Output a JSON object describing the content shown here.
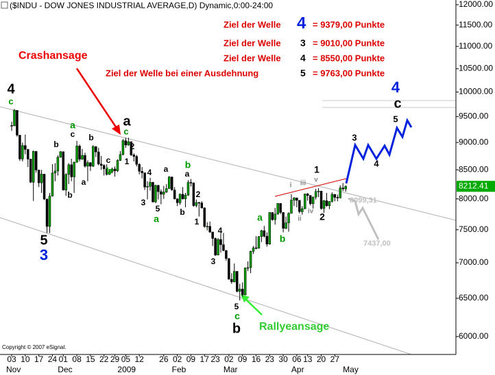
{
  "chart_data": {
    "type": "candlestick",
    "title": "($INDU - DOW JONES INDUSTRIAL AVERAGE,D) Dynamic,0:00-24:00",
    "log_scale": true,
    "up_color": "#009900",
    "down_color": "#000000",
    "ylim": [
      5780,
      12120
    ],
    "xlim": [
      -4.3,
      163.6
    ],
    "yticks": [
      {
        "value": 6000,
        "label": "6000.00"
      },
      {
        "value": 6500,
        "label": "6500.00"
      },
      {
        "value": 7000,
        "label": "7000.00"
      },
      {
        "value": 7500,
        "label": "7500.00"
      },
      {
        "value": 8000,
        "label": "8000.00"
      },
      {
        "value": 8500,
        "label": "8500.00"
      },
      {
        "value": 9000,
        "label": "9000.00"
      },
      {
        "value": 9500,
        "label": "9500.00"
      },
      {
        "value": 10000,
        "label": "10000.00"
      },
      {
        "value": 10500,
        "label": "10500.00"
      },
      {
        "value": 11000,
        "label": "11000.00"
      },
      {
        "value": 11500,
        "label": "11500.00"
      },
      {
        "value": 12000,
        "label": "12000.00"
      }
    ],
    "xticks": [
      {
        "value": 0,
        "label": "03"
      },
      {
        "value": 5,
        "label": "10"
      },
      {
        "value": 10,
        "label": "17"
      },
      {
        "value": 15,
        "label": "24"
      },
      {
        "value": 19,
        "label": "01"
      },
      {
        "value": 24,
        "label": "08"
      },
      {
        "value": 29,
        "label": "15"
      },
      {
        "value": 34,
        "label": "22"
      },
      {
        "value": 38,
        "label": "29"
      },
      {
        "value": 42,
        "label": "05"
      },
      {
        "value": 47,
        "label": "12"
      },
      {
        "value": 56,
        "label": "26"
      },
      {
        "value": 61,
        "label": "02"
      },
      {
        "value": 66,
        "label": "09"
      },
      {
        "value": 71,
        "label": "17"
      },
      {
        "value": 75,
        "label": "23"
      },
      {
        "value": 80,
        "label": "02"
      },
      {
        "value": 85,
        "label": "09"
      },
      {
        "value": 90,
        "label": "16"
      },
      {
        "value": 95,
        "label": "23"
      },
      {
        "value": 100,
        "label": "30"
      },
      {
        "value": 105,
        "label": "06"
      },
      {
        "value": 109,
        "label": "13"
      },
      {
        "value": 114,
        "label": "20"
      },
      {
        "value": 119,
        "label": "27"
      }
    ],
    "month_ticks": [
      {
        "value": 0,
        "label": "Nov"
      },
      {
        "value": 19,
        "label": "Dec"
      },
      {
        "value": 41,
        "label": "2009"
      },
      {
        "value": 61,
        "label": "Feb"
      },
      {
        "value": 80,
        "label": "Mar"
      },
      {
        "value": 105,
        "label": "Apr"
      },
      {
        "value": 124,
        "label": "May"
      }
    ],
    "ohlc": [
      [
        9325,
        9400,
        9220,
        9319
      ],
      [
        9319,
        9654,
        9310,
        9625
      ],
      [
        9625,
        9630,
        9110,
        9139
      ],
      [
        9139,
        9140,
        8660,
        8695
      ],
      [
        8695,
        9000,
        8650,
        8943
      ],
      [
        8943,
        9150,
        8780,
        8870
      ],
      [
        8870,
        8880,
        8550,
        8693
      ],
      [
        8693,
        8700,
        8270,
        8283
      ],
      [
        8283,
        8850,
        7965,
        8835
      ],
      [
        8835,
        8840,
        8450,
        8497
      ],
      [
        8497,
        8500,
        8200,
        8273
      ],
      [
        8273,
        8500,
        8100,
        8424
      ],
      [
        8424,
        8430,
        7980,
        7997
      ],
      [
        7997,
        8000,
        7450,
        7552
      ],
      [
        7552,
        8100,
        7449,
        8046
      ],
      [
        8046,
        8600,
        8040,
        8443
      ],
      [
        8443,
        8620,
        8300,
        8479
      ],
      [
        8479,
        8760,
        8400,
        8726
      ],
      [
        8726,
        8840,
        8720,
        8829
      ],
      [
        8829,
        8830,
        8140,
        8149
      ],
      [
        8149,
        8440,
        8050,
        8419
      ],
      [
        8419,
        8620,
        8250,
        8591
      ],
      [
        8591,
        8700,
        8300,
        8376
      ],
      [
        8376,
        8650,
        8100,
        8635
      ],
      [
        8635,
        9030,
        8630,
        8934
      ],
      [
        8934,
        8960,
        8650,
        8691
      ],
      [
        8691,
        8880,
        8680,
        8761
      ],
      [
        8761,
        8810,
        8540,
        8565
      ],
      [
        8565,
        8670,
        8300,
        8629
      ],
      [
        8629,
        8640,
        8480,
        8564
      ],
      [
        8564,
        8950,
        8550,
        8924
      ],
      [
        8924,
        8930,
        8730,
        8824
      ],
      [
        8824,
        8900,
        8580,
        8604
      ],
      [
        8604,
        8750,
        8500,
        8579
      ],
      [
        8579,
        8600,
        8400,
        8519
      ],
      [
        8519,
        8600,
        8400,
        8419
      ],
      [
        8419,
        8500,
        8410,
        8468
      ],
      [
        8468,
        8540,
        8440,
        8515
      ],
      [
        8515,
        8560,
        8380,
        8483
      ],
      [
        8483,
        8690,
        8460,
        8668
      ],
      [
        8668,
        8840,
        8660,
        8776
      ],
      [
        8776,
        9065,
        8760,
        9034
      ],
      [
        9034,
        9090,
        8900,
        8952
      ],
      [
        8952,
        9090,
        8940,
        9015
      ],
      [
        9015,
        9020,
        8750,
        8769
      ],
      [
        8769,
        8800,
        8650,
        8742
      ],
      [
        8742,
        8770,
        8560,
        8599
      ],
      [
        8599,
        8620,
        8420,
        8474
      ],
      [
        8474,
        8550,
        8350,
        8448
      ],
      [
        8448,
        8450,
        8150,
        8200
      ],
      [
        8200,
        8300,
        7990,
        8212
      ],
      [
        8212,
        8360,
        8140,
        8281
      ],
      [
        8281,
        8290,
        7940,
        7949
      ],
      [
        7949,
        8240,
        7930,
        8228
      ],
      [
        8228,
        8240,
        7990,
        8122
      ],
      [
        8122,
        8160,
        7910,
        8077
      ],
      [
        8077,
        8220,
        8000,
        8116
      ],
      [
        8116,
        8250,
        8100,
        8174
      ],
      [
        8174,
        8390,
        8170,
        8375
      ],
      [
        8375,
        8380,
        8140,
        8149
      ],
      [
        8149,
        8200,
        7990,
        8000
      ],
      [
        8000,
        8010,
        7880,
        7936
      ],
      [
        7936,
        8090,
        7900,
        8078
      ],
      [
        8078,
        8200,
        7990,
        8000
      ],
      [
        8000,
        8100,
        7860,
        8063
      ],
      [
        8063,
        8320,
        8050,
        8280
      ],
      [
        8280,
        8340,
        8210,
        8270
      ],
      [
        8270,
        8280,
        7870,
        7888
      ],
      [
        7888,
        7990,
        7860,
        7939
      ],
      [
        7939,
        7950,
        7710,
        7932
      ],
      [
        7932,
        7960,
        7840,
        7850
      ],
      [
        7850,
        7860,
        7530,
        7552
      ],
      [
        7552,
        7620,
        7490,
        7555
      ],
      [
        7555,
        7630,
        7450,
        7465
      ],
      [
        7465,
        7470,
        7250,
        7365
      ],
      [
        7365,
        7380,
        7100,
        7114
      ],
      [
        7114,
        7370,
        7110,
        7350
      ],
      [
        7350,
        7440,
        7150,
        7270
      ],
      [
        7270,
        7450,
        7170,
        7182
      ],
      [
        7182,
        7190,
        7030,
        7062
      ],
      [
        7062,
        7070,
        6760,
        6763
      ],
      [
        6763,
        6850,
        6700,
        6726
      ],
      [
        6726,
        6990,
        6720,
        6876
      ],
      [
        6876,
        6880,
        6580,
        6594
      ],
      [
        6594,
        6700,
        6470,
        6626
      ],
      [
        6626,
        6720,
        6520,
        6547
      ],
      [
        6547,
        6930,
        6540,
        6926
      ],
      [
        6926,
        7020,
        6880,
        6930
      ],
      [
        6930,
        7180,
        6850,
        7170
      ],
      [
        7170,
        7250,
        7130,
        7223
      ],
      [
        7223,
        7400,
        7200,
        7216
      ],
      [
        7216,
        7400,
        7210,
        7395
      ],
      [
        7395,
        7500,
        7310,
        7486
      ],
      [
        7486,
        7560,
        7380,
        7400
      ],
      [
        7400,
        7460,
        7240,
        7278
      ],
      [
        7278,
        7780,
        7270,
        7776
      ],
      [
        7776,
        7780,
        7640,
        7660
      ],
      [
        7660,
        7850,
        7580,
        7749
      ],
      [
        7749,
        7930,
        7740,
        7924
      ],
      [
        7924,
        7930,
        7750,
        7776
      ],
      [
        7776,
        7780,
        7460,
        7522
      ],
      [
        7522,
        7710,
        7510,
        7609
      ],
      [
        7609,
        7780,
        7470,
        7761
      ],
      [
        7761,
        8080,
        7760,
        7978
      ],
      [
        7978,
        8030,
        7880,
        8017
      ],
      [
        8017,
        8020,
        7860,
        7975
      ],
      [
        7975,
        7980,
        7760,
        7789
      ],
      [
        7789,
        7880,
        7740,
        7837
      ],
      [
        7837,
        8090,
        7830,
        8083
      ],
      [
        8083,
        8100,
        7970,
        8057
      ],
      [
        8057,
        8060,
        7890,
        7920
      ],
      [
        7920,
        8040,
        7840,
        8029
      ],
      [
        8029,
        8170,
        7990,
        8125
      ],
      [
        8125,
        8180,
        8030,
        8131
      ],
      [
        8131,
        8135,
        7820,
        7841
      ],
      [
        7841,
        7980,
        7770,
        7969
      ],
      [
        7969,
        8100,
        7870,
        7886
      ],
      [
        7886,
        7960,
        7830,
        7957
      ],
      [
        7957,
        8110,
        7940,
        8076
      ],
      [
        8076,
        8080,
        7960,
        8025
      ],
      [
        8025,
        8070,
        7960,
        8016
      ],
      [
        8016,
        8230,
        8010,
        8185
      ],
      [
        8185,
        8270,
        8130,
        8168
      ],
      [
        8168,
        8230,
        8120,
        8212.41
      ]
    ],
    "targets": [
      {
        "label": "Ziel der Welle",
        "wave": "4",
        "value": "= 9379,00 Punkte"
      },
      {
        "label": "Ziel der Welle",
        "wave": "3",
        "value": "= 9010,00 Punkte"
      },
      {
        "label": "Ziel der Welle",
        "wave": "4",
        "value": "= 8550,00 Punkte"
      },
      {
        "label": "Ziel der Welle bei einer Ausdehnung",
        "wave": "5",
        "value": "= 9763,00 Punkte"
      }
    ],
    "annotations": [
      "Crashansage",
      "Rallyeansage",
      "8099,31",
      "7437,00",
      "Copyright © 2007 eSignal."
    ],
    "wave_labels": [
      "4",
      "c",
      "a",
      "c",
      "b",
      "b",
      "a",
      "b",
      "c",
      "b",
      "5",
      "3",
      "a",
      "c",
      "2",
      "1",
      "4",
      "3",
      "5",
      "a",
      "a",
      "b",
      "a",
      "b",
      "2",
      "1",
      "4",
      "3",
      "5",
      "c",
      "b",
      "a",
      "b",
      "i",
      "ii",
      "iii",
      "iv",
      "v",
      "1",
      "2",
      "3",
      "4",
      "5",
      "4",
      "c"
    ]
  }
}
